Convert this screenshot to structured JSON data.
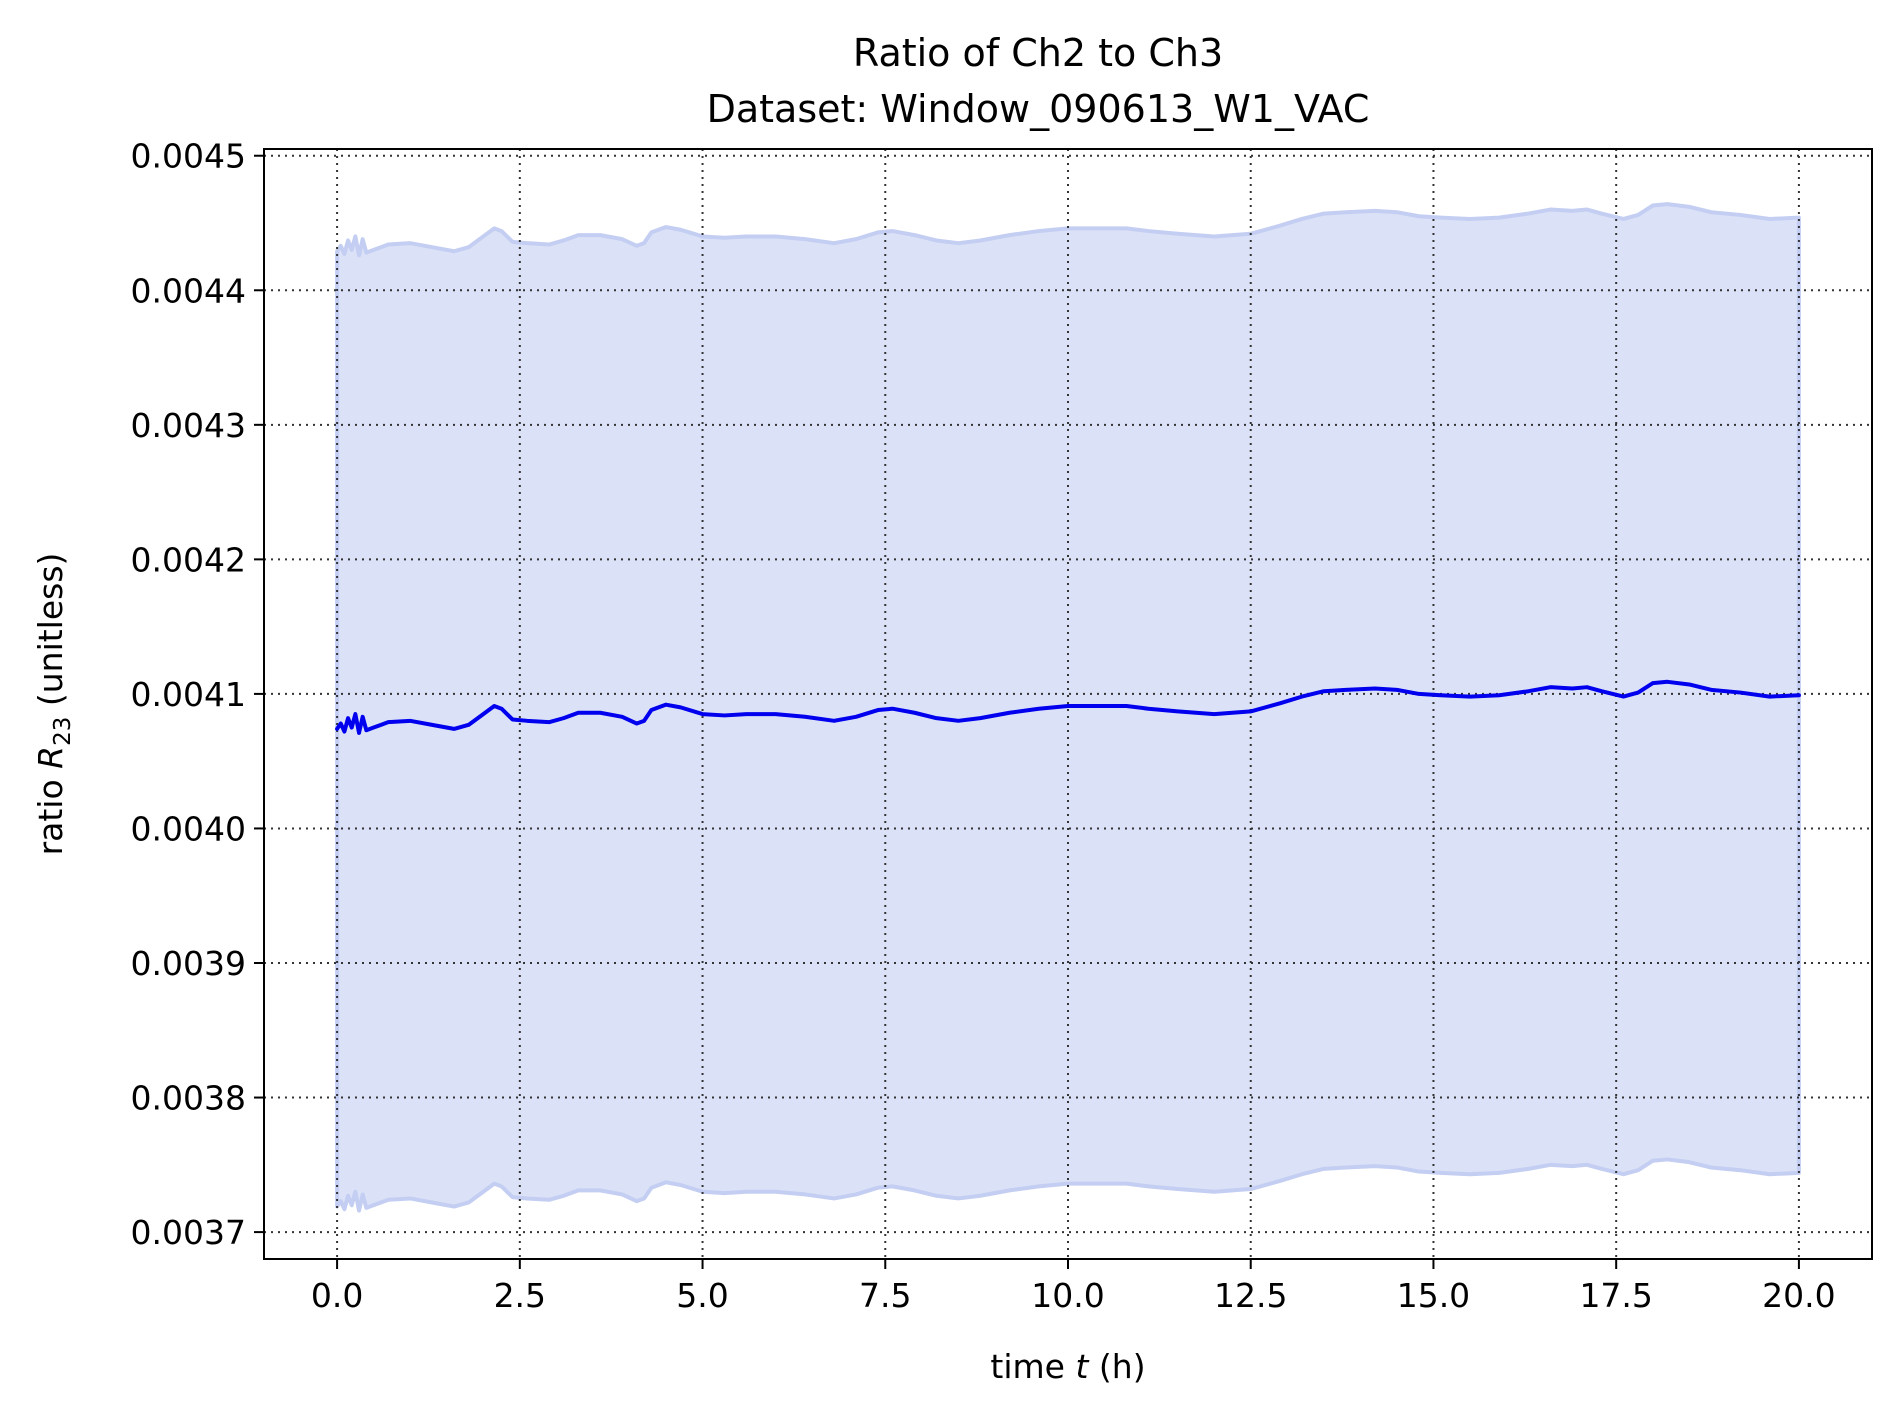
{
  "chart_data": {
    "type": "line",
    "title_line1": "Ratio of Ch2 to Ch3",
    "title_line2": "Dataset: Window_090613_W1_VAC",
    "xlabel": {
      "prefix": "time ",
      "var": "t",
      "suffix": " (h)"
    },
    "ylabel": {
      "prefix": "ratio ",
      "var": "R",
      "sub": "23",
      "suffix": " (unitless)"
    },
    "xlim": [
      -1.0,
      21.0
    ],
    "ylim": [
      0.00368,
      0.004505
    ],
    "xticks": [
      0.0,
      2.5,
      5.0,
      7.5,
      10.0,
      12.5,
      15.0,
      17.5,
      20.0
    ],
    "xtick_labels": [
      "0.0",
      "2.5",
      "5.0",
      "7.5",
      "10.0",
      "12.5",
      "15.0",
      "17.5",
      "20.0"
    ],
    "yticks": [
      0.0037,
      0.0038,
      0.0039,
      0.004,
      0.0041,
      0.0042,
      0.0043,
      0.0044,
      0.0045
    ],
    "ytick_labels": [
      "0.0037",
      "0.0038",
      "0.0039",
      "0.0040",
      "0.0041",
      "0.0042",
      "0.0043",
      "0.0044",
      "0.0045"
    ],
    "grid": true,
    "grid_style": "dotted",
    "line_color": "#0000ee",
    "band_color": "#dbe2f7",
    "band_edge_color": "#c3cef2",
    "band_halfwidth": 0.000355,
    "series": [
      {
        "x": [
          0.0,
          0.05,
          0.1,
          0.15,
          0.2,
          0.25,
          0.3,
          0.35,
          0.4,
          0.5,
          0.7,
          1.0,
          1.3,
          1.6,
          1.8,
          2.0,
          2.15,
          2.25,
          2.4,
          2.6,
          2.9,
          3.1,
          3.3,
          3.6,
          3.9,
          4.1,
          4.2,
          4.3,
          4.5,
          4.7,
          5.0,
          5.3,
          5.6,
          6.0,
          6.4,
          6.8,
          7.1,
          7.4,
          7.6,
          7.9,
          8.2,
          8.5,
          8.8,
          9.2,
          9.6,
          10.0,
          10.4,
          10.8,
          11.1,
          11.5,
          12.0,
          12.5,
          12.9,
          13.2,
          13.5,
          13.8,
          14.2,
          14.5,
          14.8,
          15.1,
          15.5,
          15.9,
          16.3,
          16.6,
          16.9,
          17.1,
          17.3,
          17.6,
          17.8,
          18.0,
          18.2,
          18.5,
          18.8,
          19.2,
          19.6,
          20.0
        ],
        "y": [
          0.004074,
          0.004078,
          0.004072,
          0.004082,
          0.004075,
          0.004085,
          0.004071,
          0.004083,
          0.004073,
          0.004075,
          0.004079,
          0.00408,
          0.004077,
          0.004074,
          0.004077,
          0.004085,
          0.004091,
          0.004089,
          0.004081,
          0.00408,
          0.004079,
          0.004082,
          0.004086,
          0.004086,
          0.004083,
          0.004078,
          0.00408,
          0.004088,
          0.004092,
          0.00409,
          0.004085,
          0.004084,
          0.004085,
          0.004085,
          0.004083,
          0.00408,
          0.004083,
          0.004088,
          0.004089,
          0.004086,
          0.004082,
          0.00408,
          0.004082,
          0.004086,
          0.004089,
          0.004091,
          0.004091,
          0.004091,
          0.004089,
          0.004087,
          0.004085,
          0.004087,
          0.004093,
          0.004098,
          0.004102,
          0.004103,
          0.004104,
          0.004103,
          0.0041,
          0.004099,
          0.004098,
          0.004099,
          0.004102,
          0.004105,
          0.004104,
          0.004105,
          0.004102,
          0.004098,
          0.004101,
          0.004108,
          0.004109,
          0.004107,
          0.004103,
          0.004101,
          0.004098,
          0.004099
        ]
      }
    ]
  }
}
